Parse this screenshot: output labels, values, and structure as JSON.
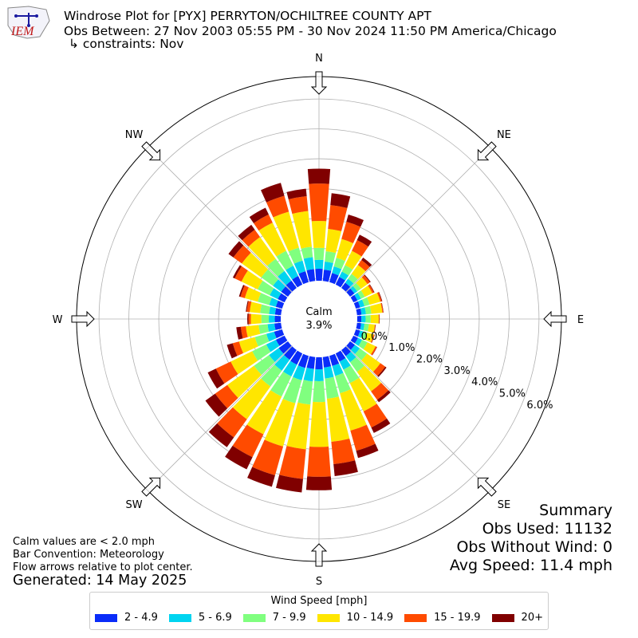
{
  "header": {
    "title": "Windrose Plot for [PYX] PERRYTON/OCHILTREE COUNTY APT",
    "subtitle": "Obs Between: 27 Nov 2003 05:55 PM - 30 Nov 2024 11:50 PM America/Chicago",
    "constraints": "↳ constraints: Nov",
    "logo_text": "IEM"
  },
  "notes": {
    "calm_def": "Calm values are < 2.0 mph",
    "bar_convention": "Bar Convention: Meteorology",
    "flow_arrows": "Flow arrows relative to plot center.",
    "generated": "Generated: 14 May 2025"
  },
  "summary": {
    "title": "Summary",
    "obs_used": "Obs Used: 11132",
    "obs_without_wind": "Obs Without Wind: 0",
    "avg_speed": "Avg Speed: 11.4 mph"
  },
  "legend": {
    "title": "Wind Speed [mph]",
    "items": [
      {
        "label": "2 - 4.9",
        "color": "#0a2cf9"
      },
      {
        "label": "5 - 6.9",
        "color": "#00d4f0"
      },
      {
        "label": "7 - 9.9",
        "color": "#80ff7f"
      },
      {
        "label": "10 - 14.9",
        "color": "#ffe600"
      },
      {
        "label": "15 - 19.9",
        "color": "#ff4b00"
      },
      {
        "label": "20+",
        "color": "#800000"
      }
    ]
  },
  "chart_data": {
    "type": "windrose",
    "calm_label": "Calm",
    "calm_value": "3.9%",
    "radial_tick_labels": [
      "0.0%",
      "1.0%",
      "2.0%",
      "3.0%",
      "4.0%",
      "5.0%",
      "6.0%"
    ],
    "radial_ticks": [
      0,
      1,
      2,
      3,
      4,
      5,
      6
    ],
    "rmax": 6.75,
    "compass_labels": [
      "N",
      "NE",
      "E",
      "SE",
      "S",
      "SW",
      "W",
      "NW"
    ],
    "bin_labels": [
      "2 - 4.9",
      "5 - 6.9",
      "7 - 9.9",
      "10 - 14.9",
      "15 - 19.9",
      "20+"
    ],
    "directions": [
      0,
      10,
      20,
      30,
      40,
      50,
      60,
      70,
      80,
      90,
      100,
      110,
      120,
      130,
      140,
      150,
      160,
      170,
      180,
      190,
      200,
      210,
      220,
      230,
      240,
      250,
      260,
      270,
      280,
      290,
      300,
      310,
      320,
      330,
      340,
      350
    ],
    "cumulative": [
      [
        0.4,
        0.7,
        1.1,
        2.0,
        3.25,
        3.75
      ],
      [
        0.38,
        0.65,
        1.0,
        1.75,
        2.55,
        2.95
      ],
      [
        0.32,
        0.55,
        0.85,
        1.5,
        2.1,
        2.35
      ],
      [
        0.28,
        0.48,
        0.72,
        1.25,
        1.65,
        1.85
      ],
      [
        0.22,
        0.38,
        0.58,
        0.95,
        1.15,
        1.25
      ],
      [
        0.18,
        0.3,
        0.45,
        0.72,
        0.82,
        0.85
      ],
      [
        0.15,
        0.28,
        0.42,
        0.7,
        0.76,
        0.78
      ],
      [
        0.15,
        0.3,
        0.48,
        0.85,
        0.9,
        0.92
      ],
      [
        0.15,
        0.3,
        0.48,
        0.85,
        0.88,
        0.89
      ],
      [
        0.14,
        0.28,
        0.45,
        0.72,
        0.74,
        0.75
      ],
      [
        0.14,
        0.25,
        0.4,
        0.6,
        0.62,
        0.63
      ],
      [
        0.15,
        0.26,
        0.4,
        0.62,
        0.65,
        0.66
      ],
      [
        0.17,
        0.32,
        0.52,
        0.82,
        0.87,
        0.88
      ],
      [
        0.2,
        0.4,
        0.7,
        1.25,
        1.45,
        1.5
      ],
      [
        0.25,
        0.5,
        0.9,
        1.7,
        2.05,
        2.15
      ],
      [
        0.3,
        0.6,
        1.1,
        2.15,
        2.75,
        2.95
      ],
      [
        0.35,
        0.7,
        1.3,
        2.6,
        3.3,
        3.55
      ],
      [
        0.35,
        0.72,
        1.4,
        2.85,
        3.6,
        4.0
      ],
      [
        0.4,
        0.8,
        1.5,
        3.0,
        4.0,
        4.45
      ],
      [
        0.4,
        0.82,
        1.6,
        3.1,
        4.1,
        4.55
      ],
      [
        0.42,
        0.85,
        1.65,
        3.15,
        4.15,
        4.55
      ],
      [
        0.42,
        0.85,
        1.6,
        3.0,
        3.85,
        4.3
      ],
      [
        0.4,
        0.85,
        1.5,
        2.85,
        3.6,
        4.0
      ],
      [
        0.38,
        0.78,
        1.4,
        2.5,
        3.0,
        3.4
      ],
      [
        0.32,
        0.68,
        1.2,
        2.0,
        2.55,
        2.85
      ],
      [
        0.28,
        0.55,
        0.95,
        1.5,
        1.72,
        1.92
      ],
      [
        0.22,
        0.45,
        0.75,
        1.18,
        1.35,
        1.5
      ],
      [
        0.2,
        0.4,
        0.65,
        1.0,
        1.08,
        1.12
      ],
      [
        0.2,
        0.4,
        0.7,
        1.05,
        1.15,
        1.18
      ],
      [
        0.22,
        0.45,
        0.85,
        1.3,
        1.45,
        1.5
      ],
      [
        0.25,
        0.55,
        1.0,
        1.6,
        1.85,
        1.92
      ],
      [
        0.28,
        0.62,
        1.1,
        1.9,
        2.25,
        2.45
      ],
      [
        0.3,
        0.7,
        1.2,
        2.1,
        2.4,
        2.6
      ],
      [
        0.32,
        0.7,
        1.25,
        2.3,
        2.6,
        2.85
      ],
      [
        0.38,
        0.75,
        1.2,
        2.45,
        3.0,
        3.45
      ],
      [
        0.4,
        0.8,
        1.15,
        2.35,
        2.85,
        3.1
      ]
    ]
  }
}
